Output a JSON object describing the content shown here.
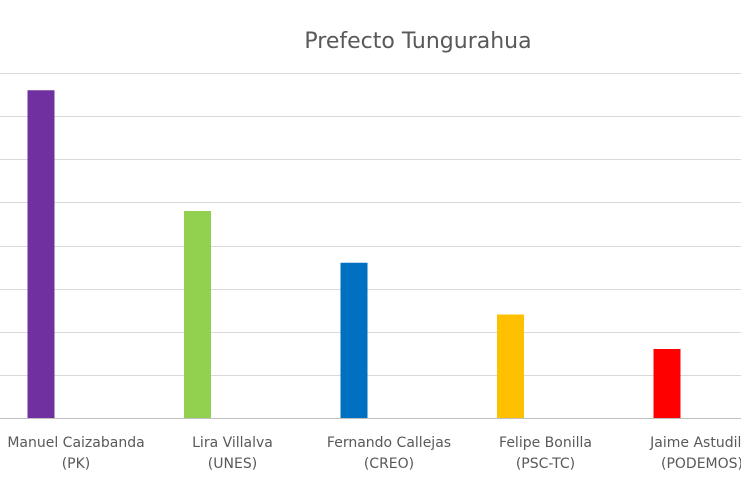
{
  "chart_data": {
    "type": "bar",
    "title": "Prefecto Tungurahua",
    "categories": [
      {
        "line1": "Manuel Caizabanda",
        "line2": "(PK)"
      },
      {
        "line1": "Lira Villalva",
        "line2": "(UNES)"
      },
      {
        "line1": "Fernando Callejas",
        "line2": "(CREO)"
      },
      {
        "line1": "Felipe Bonilla",
        "line2": "(PSC-TC)"
      },
      {
        "line1": "Jaime Astudillo",
        "line2": "(PODEMOS)"
      }
    ],
    "values": [
      38,
      24,
      18,
      12,
      8
    ],
    "colors": [
      "#7030A0",
      "#92D050",
      "#0070C0",
      "#FFC000",
      "#FF0000"
    ],
    "ylim": [
      0,
      40
    ],
    "gridlines": [
      0,
      5,
      10,
      15,
      20,
      25,
      30,
      35,
      40
    ],
    "grid": true,
    "xlabel": "",
    "ylabel": "",
    "legend": "none"
  }
}
